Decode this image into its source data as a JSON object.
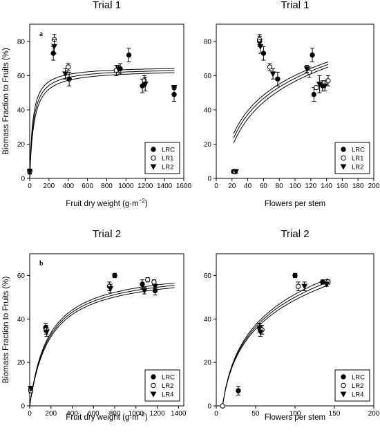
{
  "chart_data": [
    {
      "type": "scatter",
      "panel_letter": "a",
      "title": "Trial 1",
      "xlabel": "Fruit dry weight (g·m",
      "xlabel_sup": "−2",
      "xlabel_end": ")",
      "ylabel": "Biomass Fraction to Fruits (%)",
      "xlim": [
        0,
        1600
      ],
      "ylim": [
        0,
        90
      ],
      "xticks": [
        0,
        200,
        400,
        600,
        800,
        1000,
        1200,
        1400,
        1600
      ],
      "yticks": [
        0,
        20,
        40,
        60,
        80
      ],
      "grid": false,
      "legend_position": "bottom-right",
      "series": [
        {
          "name": "LRC",
          "marker": "filled-circle",
          "points": [
            {
              "x": 0,
              "y": 4,
              "err": 1.5
            },
            {
              "x": 245,
              "y": 73,
              "err": 4
            },
            {
              "x": 410,
              "y": 58,
              "err": 4
            },
            {
              "x": 940,
              "y": 64,
              "err": 3
            },
            {
              "x": 1030,
              "y": 72,
              "err": 4
            },
            {
              "x": 1170,
              "y": 54,
              "err": 4
            },
            {
              "x": 1500,
              "y": 49,
              "err": 4
            }
          ]
        },
        {
          "name": "LR1",
          "marker": "open-circle",
          "points": [
            {
              "x": 0,
              "y": 4,
              "err": 1
            },
            {
              "x": 255,
              "y": 81,
              "err": 3
            },
            {
              "x": 400,
              "y": 65,
              "err": 2
            },
            {
              "x": 900,
              "y": 63,
              "err": 3
            },
            {
              "x": 1190,
              "y": 57,
              "err": 3
            },
            {
              "x": 1500,
              "y": 53,
              "err": 1
            }
          ]
        },
        {
          "name": "LR2",
          "marker": "filled-triangle",
          "points": [
            {
              "x": 0,
              "y": 4,
              "err": 1
            },
            {
              "x": 255,
              "y": 77,
              "err": 4
            },
            {
              "x": 370,
              "y": 61,
              "err": 3
            },
            {
              "x": 920,
              "y": 64,
              "err": 2
            },
            {
              "x": 1200,
              "y": 55,
              "err": 4
            },
            {
              "x": 1500,
              "y": 53,
              "err": 1
            }
          ]
        }
      ],
      "fits": [
        {
          "series": "LRC",
          "model": "michaelis-menten",
          "a": 65.5,
          "b": 32
        },
        {
          "series": "LR1",
          "model": "michaelis-menten",
          "a": 64.5,
          "b": 38
        },
        {
          "series": "LR2",
          "model": "michaelis-menten",
          "a": 63.5,
          "b": 44
        }
      ]
    },
    {
      "type": "scatter",
      "title": "Trial 1",
      "xlabel": "Flowers per stem",
      "xlim": [
        0,
        200
      ],
      "ylim": [
        0,
        90
      ],
      "xticks": [
        0,
        20,
        40,
        60,
        80,
        100,
        120,
        140,
        160,
        180,
        200
      ],
      "yticks": [
        0,
        20,
        40,
        60,
        80
      ],
      "grid": false,
      "legend_position": "bottom-right",
      "series": [
        {
          "name": "LRC",
          "marker": "filled-circle",
          "points": [
            {
              "x": 22,
              "y": 4,
              "err": 1
            },
            {
              "x": 55,
              "y": 80,
              "err": 3
            },
            {
              "x": 60,
              "y": 73,
              "err": 4
            },
            {
              "x": 78,
              "y": 58,
              "err": 4
            },
            {
              "x": 122,
              "y": 72,
              "err": 4
            },
            {
              "x": 124,
              "y": 49,
              "err": 4
            },
            {
              "x": 135,
              "y": 54,
              "err": 3
            }
          ]
        },
        {
          "name": "LR1",
          "marker": "open-circle",
          "points": [
            {
              "x": 24,
              "y": 4,
              "err": 1
            },
            {
              "x": 55,
              "y": 81,
              "err": 3
            },
            {
              "x": 68,
              "y": 65,
              "err": 2
            },
            {
              "x": 118,
              "y": 62,
              "err": 3
            },
            {
              "x": 127,
              "y": 53,
              "err": 1
            },
            {
              "x": 142,
              "y": 57,
              "err": 3
            }
          ]
        },
        {
          "name": "LR2",
          "marker": "filled-triangle",
          "points": [
            {
              "x": 25,
              "y": 4,
              "err": 1
            },
            {
              "x": 56,
              "y": 77,
              "err": 4
            },
            {
              "x": 72,
              "y": 61,
              "err": 3
            },
            {
              "x": 115,
              "y": 64,
              "err": 2
            },
            {
              "x": 131,
              "y": 55,
              "err": 5
            },
            {
              "x": 138,
              "y": 54,
              "err": 3
            }
          ]
        }
      ],
      "fits": [
        {
          "series": "LRC",
          "model": "log",
          "x_from": 22,
          "x_to": 142,
          "y_from": 26,
          "y_to": 68
        },
        {
          "series": "LR1",
          "model": "log",
          "x_from": 22,
          "x_to": 142,
          "y_from": 23.5,
          "y_to": 66.5
        },
        {
          "series": "LR2",
          "model": "log",
          "x_from": 22,
          "x_to": 142,
          "y_from": 20.5,
          "y_to": 65
        }
      ]
    },
    {
      "type": "scatter",
      "panel_letter": "b",
      "title": "Trial 2",
      "xlabel": "Fruit dry weight (g·m",
      "xlabel_sup": "−2",
      "xlabel_end": ")",
      "ylabel": "Biomass Fraction to Fruits (%)",
      "xlim": [
        0,
        1450
      ],
      "ylim": [
        0,
        70
      ],
      "xticks": [
        0,
        200,
        400,
        600,
        800,
        1000,
        1200,
        1400
      ],
      "yticks": [
        0,
        20,
        40,
        60
      ],
      "grid": false,
      "legend_position": "bottom-right",
      "series": [
        {
          "name": "LRC",
          "marker": "filled-circle",
          "points": [
            {
              "x": 10,
              "y": 7.5,
              "err": 1.5
            },
            {
              "x": 150,
              "y": 36,
              "err": 2
            },
            {
              "x": 800,
              "y": 60,
              "err": 1
            },
            {
              "x": 1060,
              "y": 56,
              "err": 2
            },
            {
              "x": 1180,
              "y": 53,
              "err": 2
            }
          ]
        },
        {
          "name": "LR2",
          "marker": "open-circle",
          "points": [
            {
              "x": 10,
              "y": 7,
              "err": 1
            },
            {
              "x": 155,
              "y": 35,
              "err": 2
            },
            {
              "x": 750,
              "y": 55,
              "err": 2
            },
            {
              "x": 1110,
              "y": 58,
              "err": 1
            },
            {
              "x": 1170,
              "y": 57,
              "err": 1
            }
          ]
        },
        {
          "name": "LR4",
          "marker": "filled-triangle",
          "points": [
            {
              "x": 10,
              "y": 8,
              "err": 1
            },
            {
              "x": 160,
              "y": 34,
              "err": 2
            },
            {
              "x": 760,
              "y": 54,
              "err": 2
            },
            {
              "x": 1080,
              "y": 53,
              "err": 1.5
            },
            {
              "x": 1180,
              "y": 55,
              "err": 1
            }
          ]
        }
      ],
      "fits": [
        {
          "series": "LRC",
          "model": "michaelis-menten",
          "a": 64,
          "b": 180
        },
        {
          "series": "LR2",
          "model": "michaelis-menten",
          "a": 63,
          "b": 185
        },
        {
          "series": "LR4",
          "model": "michaelis-menten",
          "a": 62,
          "b": 190
        }
      ]
    },
    {
      "type": "scatter",
      "title": "Trial 2",
      "xlabel": "Flowers per stem",
      "xlim": [
        0,
        200
      ],
      "ylim": [
        0,
        70
      ],
      "xticks": [
        0,
        50,
        100,
        150,
        200
      ],
      "yticks": [
        0,
        20,
        40,
        60
      ],
      "grid": false,
      "legend_position": "bottom-right",
      "series": [
        {
          "name": "LRC",
          "marker": "filled-circle",
          "points": [
            {
              "x": 28,
              "y": 7,
              "err": 2
            },
            {
              "x": 55,
              "y": 36,
              "err": 2
            },
            {
              "x": 100,
              "y": 60,
              "err": 1
            },
            {
              "x": 135,
              "y": 57,
              "err": 1
            }
          ]
        },
        {
          "name": "LR2",
          "marker": "open-circle",
          "points": [
            {
              "x": 8,
              "y": 0,
              "err": 0
            },
            {
              "x": 58,
              "y": 35,
              "err": 2
            },
            {
              "x": 104,
              "y": 55,
              "err": 2
            },
            {
              "x": 142,
              "y": 57,
              "err": 1
            }
          ]
        },
        {
          "name": "LR4",
          "marker": "filled-triangle",
          "points": [
            {
              "x": 56,
              "y": 34,
              "err": 2
            },
            {
              "x": 112,
              "y": 55,
              "err": 2
            },
            {
              "x": 140,
              "y": 56,
              "err": 1
            }
          ]
        }
      ],
      "fits": [
        {
          "series": "LRC",
          "model": "log",
          "x_from": 8,
          "x_to": 142,
          "y_from": 0,
          "y_to": 58.5
        },
        {
          "series": "LR2",
          "model": "log",
          "x_from": 8,
          "x_to": 142,
          "y_from": 0,
          "y_to": 57
        },
        {
          "series": "LR4",
          "model": "log",
          "x_from": 8,
          "x_to": 142,
          "y_from": 0,
          "y_to": 55.5
        }
      ]
    }
  ]
}
